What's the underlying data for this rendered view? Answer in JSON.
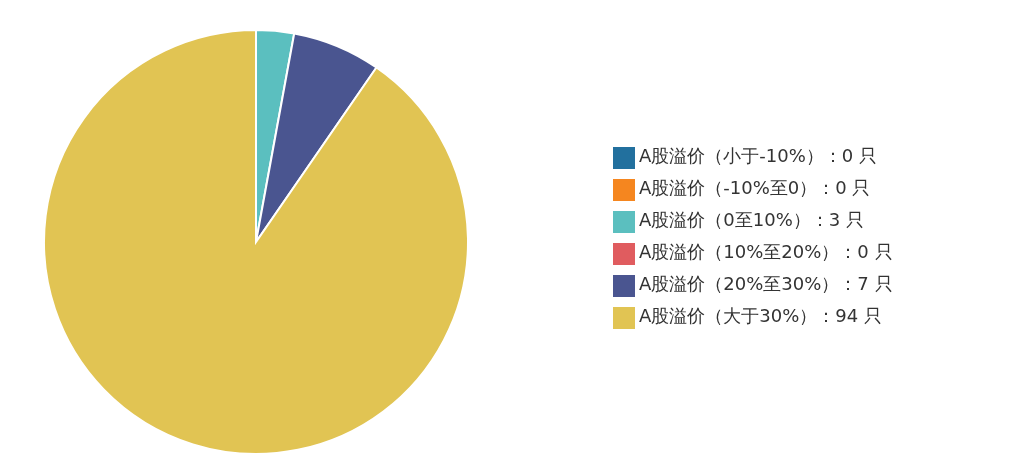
{
  "chart_data": {
    "type": "pie",
    "categories": [
      "A股溢价（小于-10%）：0 只",
      "A股溢价（-10%至0）：0 只",
      "A股溢价（0至10%）：3 只",
      "A股溢价（10%至20%）：0 只",
      "A股溢价（20%至30%）：7 只",
      "A股溢价（大于30%）：94 只"
    ],
    "values": [
      0,
      0,
      3,
      0,
      7,
      94
    ],
    "colors": [
      "#22709e",
      "#f5861f",
      "#5bbfbf",
      "#e05c5f",
      "#4a5590",
      "#e1c453"
    ],
    "legend": "right"
  }
}
